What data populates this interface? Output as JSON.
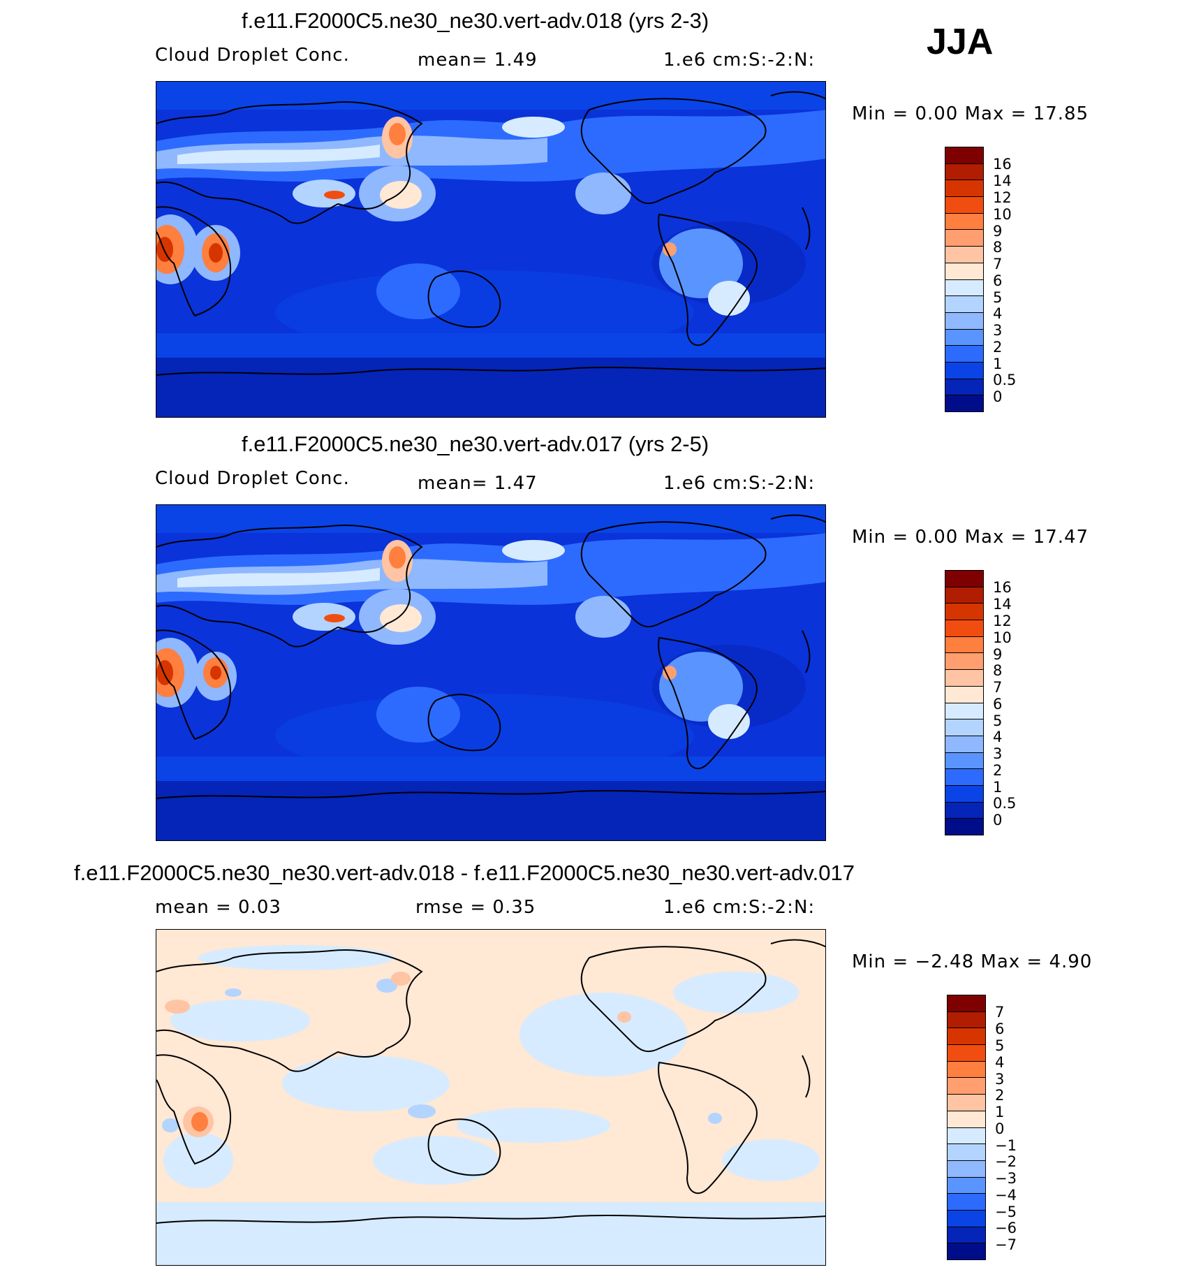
{
  "season": "JJA",
  "panels": [
    {
      "title": "f.e11.F2000C5.ne30_ne30.vert-adv.018 (yrs 2-3)",
      "left_label": "Cloud Droplet Conc.",
      "center_label": "mean=    1.49",
      "units": "1.e6 cm:S:-2:N:",
      "minmax": "Min =    0.00 Max =   17.85",
      "levels": [
        "16",
        "14",
        "12",
        "10",
        "9",
        "8",
        "7",
        "6",
        "5",
        "4",
        "3",
        "2",
        "1",
        "0.5",
        "0"
      ],
      "colors": [
        "#7f0000",
        "#b01d00",
        "#d63500",
        "#f24d10",
        "#ff7f3f",
        "#ff9f70",
        "#ffc4a3",
        "#ffe8d4",
        "#d6ebff",
        "#b3d4ff",
        "#8fb8ff",
        "#5a95ff",
        "#2d6bff",
        "#0a44e6",
        "#0524b8",
        "#000d8a"
      ],
      "background": "#0a33d9"
    },
    {
      "title": "f.e11.F2000C5.ne30_ne30.vert-adv.017 (yrs 2-5)",
      "left_label": "Cloud Droplet Conc.",
      "center_label": "mean=    1.47",
      "units": "1.e6 cm:S:-2:N:",
      "minmax": "Min =    0.00 Max =   17.47",
      "levels": [
        "16",
        "14",
        "12",
        "10",
        "9",
        "8",
        "7",
        "6",
        "5",
        "4",
        "3",
        "2",
        "1",
        "0.5",
        "0"
      ],
      "colors": [
        "#7f0000",
        "#b01d00",
        "#d63500",
        "#f24d10",
        "#ff7f3f",
        "#ff9f70",
        "#ffc4a3",
        "#ffe8d4",
        "#d6ebff",
        "#b3d4ff",
        "#8fb8ff",
        "#5a95ff",
        "#2d6bff",
        "#0a44e6",
        "#0524b8",
        "#000d8a"
      ],
      "background": "#0a33d9"
    },
    {
      "title": "f.e11.F2000C5.ne30_ne30.vert-adv.018 - f.e11.F2000C5.ne30_ne30.vert-adv.017",
      "left_label": "mean =    0.03",
      "center_label": "rmse =    0.35",
      "units": "1.e6 cm:S:-2:N:",
      "minmax": "Min =  −2.48 Max =    4.90",
      "levels": [
        "7",
        "6",
        "5",
        "4",
        "3",
        "2",
        "1",
        "0",
        "−1",
        "−2",
        "−3",
        "−4",
        "−5",
        "−6",
        "−7"
      ],
      "colors": [
        "#7f0000",
        "#b01d00",
        "#d63500",
        "#f24d10",
        "#ff7f3f",
        "#ff9f70",
        "#ffc4a3",
        "#ffe8d4",
        "#d6ebff",
        "#b3d4ff",
        "#8fb8ff",
        "#5a95ff",
        "#2d6bff",
        "#0a44e6",
        "#0524b8",
        "#000d8a"
      ],
      "background": "#fde8d8"
    }
  ]
}
